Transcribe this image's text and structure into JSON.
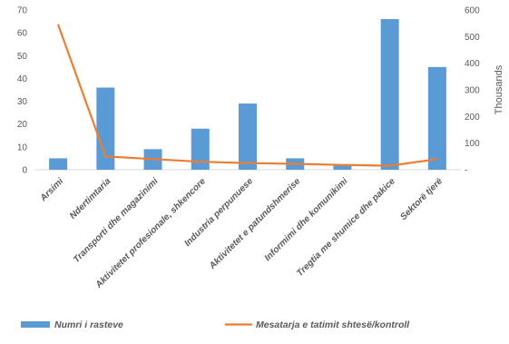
{
  "chart_data": {
    "type": "bar",
    "categories": [
      "Arsimi",
      "Ndertimtaria",
      "Transporti dhe magazinimi",
      "Aktivitetet profesionale, shkencore",
      "Industria perpunuese",
      "Aktivitetet e patundshmerise",
      "Informimi dhe komunikimi",
      "Tregtia me shumice dhe pakice",
      "Sektorë tjerë"
    ],
    "series": [
      {
        "name": "Numri i rasteve",
        "type": "bar",
        "axis": "left",
        "color": "#5B9BD5",
        "values": [
          5,
          36,
          9,
          18,
          29,
          5,
          2,
          66,
          45
        ]
      },
      {
        "name": "Mesatarja e tatimit shtesë/kontroll",
        "type": "line",
        "axis": "right",
        "color": "#ED7D31",
        "values": [
          545,
          50,
          40,
          30,
          25,
          22,
          18,
          15,
          40
        ]
      }
    ],
    "y_left": {
      "range": [
        0,
        70
      ],
      "ticks": [
        "0",
        "10",
        "20",
        "30",
        "40",
        "50",
        "60",
        "70"
      ]
    },
    "y_right": {
      "range": [
        0,
        600
      ],
      "ticks": [
        "-",
        "100",
        "200",
        "300",
        "400",
        "500",
        "600"
      ],
      "label": "Thousands"
    },
    "grid": false,
    "legend": "bottom"
  }
}
